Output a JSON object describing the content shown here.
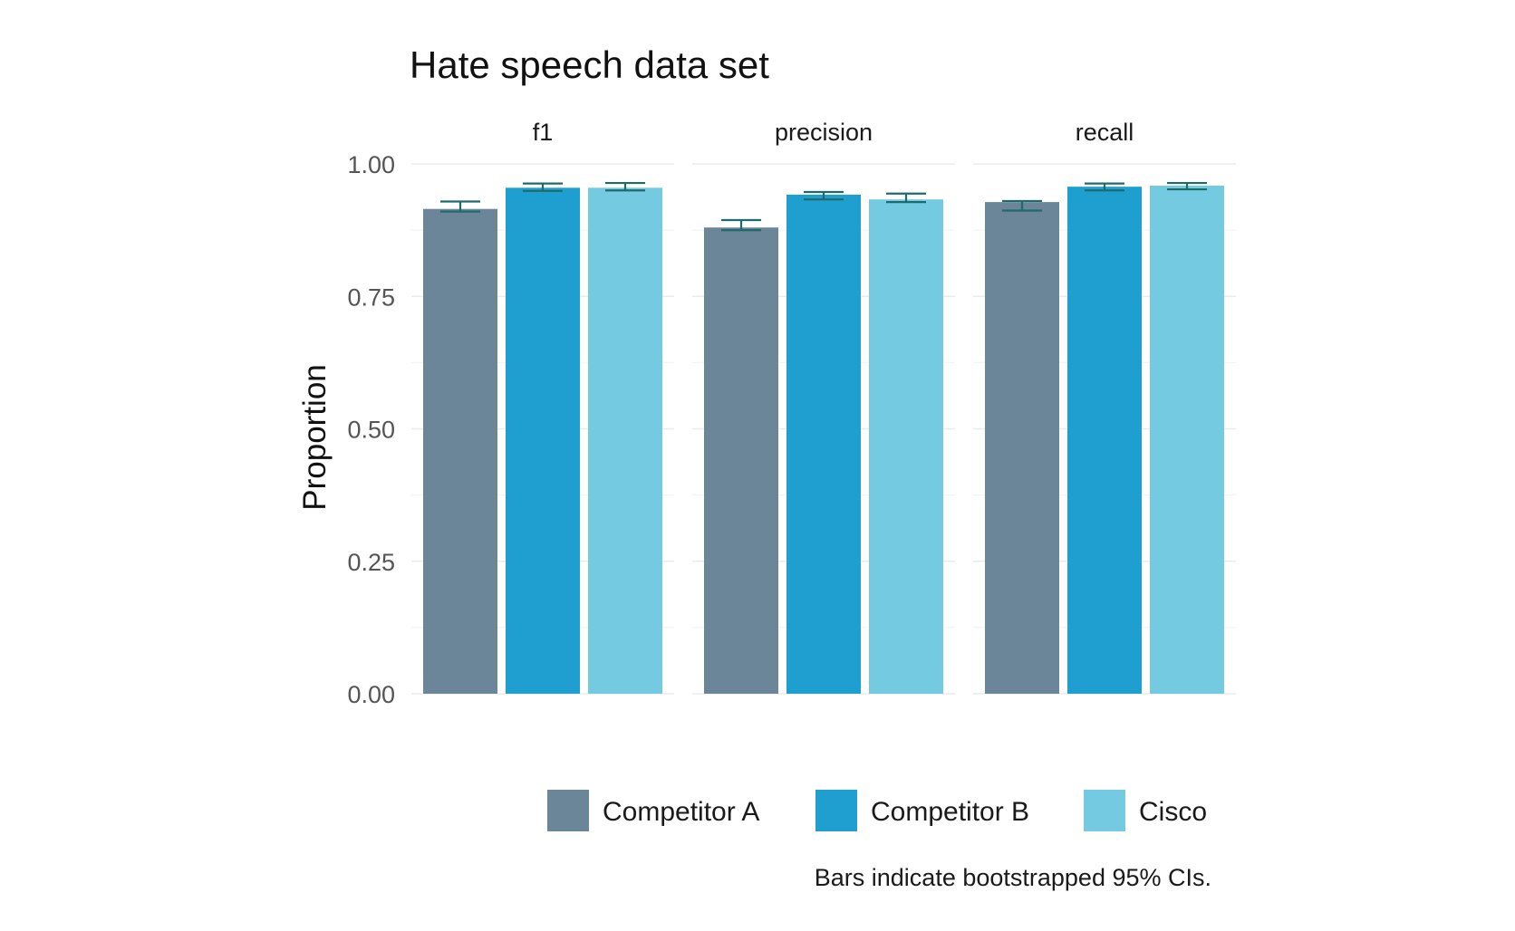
{
  "chart_data": {
    "type": "bar",
    "title": "Hate speech data set",
    "xlabel": "",
    "ylabel": "Proportion",
    "ylim": [
      0,
      1
    ],
    "yticks": [
      "0.00",
      "0.25",
      "0.50",
      "0.75",
      "1.00"
    ],
    "grid": true,
    "legend_position": "bottom",
    "panels": [
      "f1",
      "precision",
      "recall"
    ],
    "series": [
      {
        "name": "Competitor A",
        "color": "#6b8599",
        "values": [
          0.915,
          0.88,
          0.928
        ],
        "ci_low": [
          0.91,
          0.875,
          0.912
        ],
        "ci_high": [
          0.929,
          0.894,
          0.93
        ]
      },
      {
        "name": "Competitor B",
        "color": "#1f9fcf",
        "values": [
          0.955,
          0.942,
          0.957
        ],
        "ci_low": [
          0.949,
          0.933,
          0.95
        ],
        "ci_high": [
          0.963,
          0.947,
          0.963
        ]
      },
      {
        "name": "Cisco",
        "color": "#74cae0",
        "values": [
          0.955,
          0.933,
          0.959
        ],
        "ci_low": [
          0.95,
          0.928,
          0.952
        ],
        "ci_high": [
          0.964,
          0.944,
          0.964
        ]
      }
    ],
    "caption": "Bars indicate bootstrapped 95% CIs."
  }
}
